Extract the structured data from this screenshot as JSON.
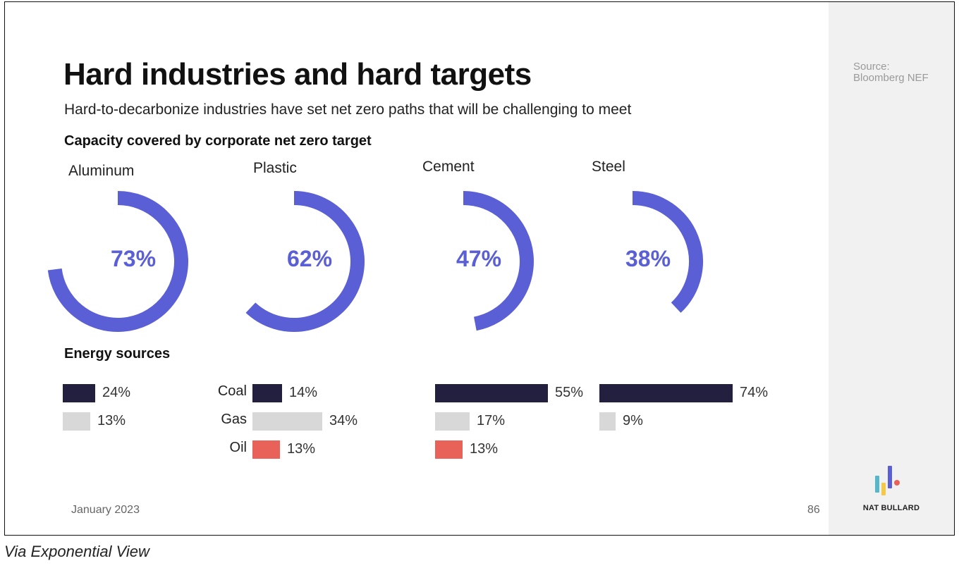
{
  "slide": {
    "title": "Hard industries and hard targets",
    "subtitle": "Hard-to-decarbonize industries have set net zero paths that will be challenging to meet",
    "donut_section": "Capacity covered by corporate net zero target",
    "energy_section": "Energy sources",
    "date": "January 2023",
    "page_number": "86",
    "source": "Source: Bloomberg NEF",
    "brand": "NAT BULLARD",
    "caption": "Via Exponential View"
  },
  "colors": {
    "donut": "#5a5fd6",
    "coal": "#231f3f",
    "gas": "#d8d8d8",
    "oil": "#e8625a",
    "logo_teal": "#55b7cc",
    "logo_yellow": "#f3c94a",
    "logo_purple": "#5a5fd6",
    "logo_red": "#e8625a"
  },
  "energy_labels": [
    "Coal",
    "Gas",
    "Oil"
  ],
  "chart_data": [
    {
      "type": "pie",
      "title": "Capacity covered by corporate net zero target",
      "categories": [
        "Aluminum",
        "Plastic",
        "Cement",
        "Steel"
      ],
      "values": [
        73,
        62,
        47,
        38
      ],
      "value_labels": [
        "73%",
        "62%",
        "47%",
        "38%"
      ]
    },
    {
      "type": "bar",
      "title": "Energy sources",
      "categories": [
        "Aluminum",
        "Plastic",
        "Cement",
        "Steel"
      ],
      "series": [
        {
          "name": "Coal",
          "values": [
            24,
            14,
            55,
            74
          ],
          "labels": [
            "24%",
            "14%",
            "55%",
            "74%"
          ]
        },
        {
          "name": "Gas",
          "values": [
            13,
            34,
            17,
            9
          ],
          "labels": [
            "13%",
            "34%",
            "17%",
            "9%"
          ]
        },
        {
          "name": "Oil",
          "values": [
            null,
            13,
            13,
            null
          ],
          "labels": [
            "",
            "13%",
            "13%",
            ""
          ]
        }
      ]
    }
  ]
}
